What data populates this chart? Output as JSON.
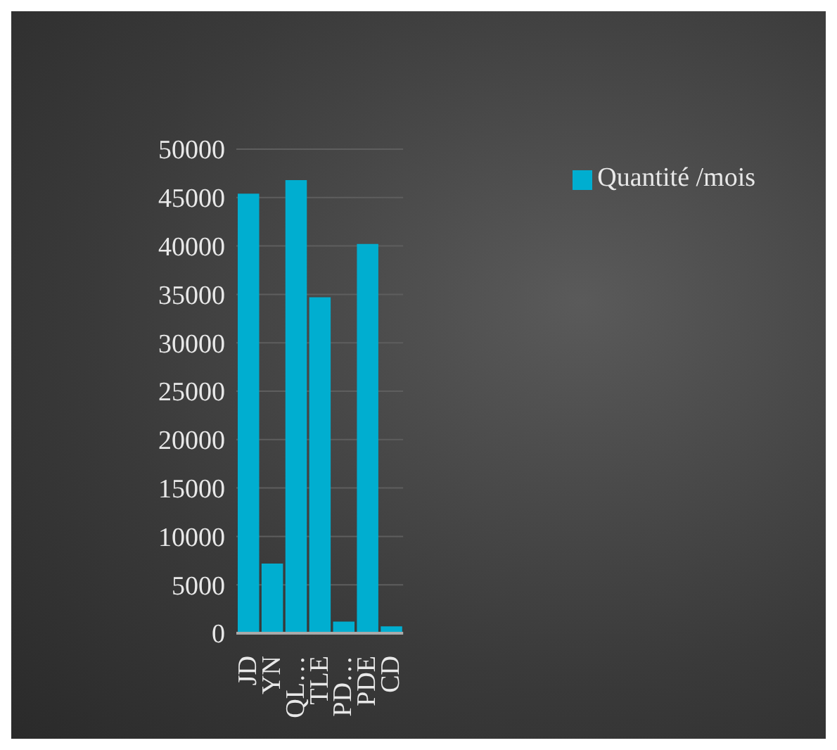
{
  "chart_data": {
    "type": "bar",
    "categories": [
      "JD",
      "YN",
      "QL…",
      "TLE",
      "PD…",
      "PDE",
      "CD"
    ],
    "series": [
      {
        "name": "Quantité /mois",
        "color": "#00aed0",
        "values": [
          45400,
          7200,
          46800,
          34700,
          1200,
          40200,
          700
        ]
      }
    ],
    "ylim": [
      0,
      50000
    ],
    "yticks": [
      0,
      5000,
      10000,
      15000,
      20000,
      25000,
      30000,
      35000,
      40000,
      45000,
      50000
    ],
    "grid": "y",
    "legend": "top right"
  }
}
